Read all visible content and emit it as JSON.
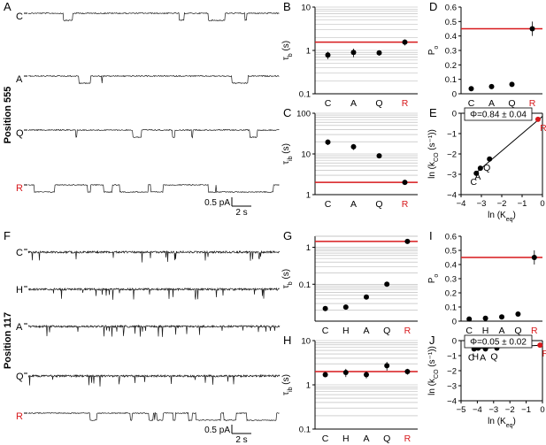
{
  "figure": {
    "position_labels": [
      "Position 555",
      "Position 117"
    ],
    "colors": {
      "black": "#000000",
      "red": "#d7191c",
      "grid": "#b3b3b3",
      "trace": "#1a1a1a"
    }
  },
  "traces": {
    "A": {
      "panel": "A",
      "rows": [
        {
          "label": "C",
          "red": false,
          "baseline": "closed",
          "style": "sparse"
        },
        {
          "label": "A",
          "red": false,
          "baseline": "closed",
          "style": "sparse"
        },
        {
          "label": "Q",
          "red": false,
          "baseline": "closed",
          "style": "sparse"
        },
        {
          "label": "R",
          "red": true,
          "baseline": "closed",
          "style": "gating"
        }
      ],
      "scalebar": {
        "current": "0.5 pA",
        "time": "2 s"
      }
    },
    "F": {
      "panel": "F",
      "rows": [
        {
          "label": "C",
          "red": false,
          "baseline": "open",
          "style": "flicker"
        },
        {
          "label": "H",
          "red": false,
          "baseline": "open",
          "style": "flicker"
        },
        {
          "label": "A",
          "red": false,
          "baseline": "open",
          "style": "flicker"
        },
        {
          "label": "Q",
          "red": false,
          "baseline": "open",
          "style": "flicker"
        },
        {
          "label": "R",
          "red": true,
          "baseline": "closed",
          "style": "gating"
        }
      ],
      "scalebar": {
        "current": "0.5 pA",
        "time": "2 s"
      }
    }
  },
  "chart_data": [
    {
      "panel": "B",
      "type": "scatter",
      "xscale": "category",
      "yscale": "log",
      "ylim": [
        0.1,
        10
      ],
      "yticks": [
        0.1,
        1,
        10
      ],
      "ytick_labels": [
        "0.1",
        "1",
        "10"
      ],
      "ylabel": "τb (s)",
      "grid": true,
      "categories": [
        "C",
        "A",
        "Q",
        "R"
      ],
      "red_categories": [
        "R"
      ],
      "values": [
        0.78,
        0.9,
        0.88,
        1.55
      ],
      "errors": [
        0.15,
        0.2,
        0.12,
        0.25
      ],
      "hline": 1.55
    },
    {
      "panel": "C",
      "type": "scatter",
      "xscale": "category",
      "yscale": "log",
      "ylim": [
        1,
        100
      ],
      "yticks": [
        1,
        10,
        100
      ],
      "ytick_labels": [
        "1",
        "10",
        "100"
      ],
      "ylabel": "τib (s)",
      "grid": true,
      "categories": [
        "C",
        "A",
        "Q",
        "R"
      ],
      "red_categories": [
        "R"
      ],
      "values": [
        19.5,
        15,
        9,
        2
      ],
      "errors": [
        3,
        2.5,
        1,
        0.2
      ],
      "hline": 2
    },
    {
      "panel": "D",
      "type": "scatter",
      "xscale": "category",
      "yscale": "linear",
      "ylim": [
        0,
        0.6
      ],
      "yticks": [
        0,
        0.1,
        0.2,
        0.3,
        0.4,
        0.5,
        0.6
      ],
      "ytick_labels": [
        "0",
        "0.1",
        "0.2",
        "0.3",
        "0.4",
        "0.5",
        "0.6"
      ],
      "ylabel": "Po",
      "grid": false,
      "categories": [
        "C",
        "A",
        "Q",
        "R"
      ],
      "red_categories": [
        "R"
      ],
      "values": [
        0.035,
        0.05,
        0.065,
        0.45
      ],
      "errors": [
        0.005,
        0.006,
        0.008,
        0.05
      ],
      "hline": 0.45
    },
    {
      "panel": "E",
      "type": "scatter",
      "xscale": "linear",
      "yscale": "linear",
      "xlim": [
        -4,
        0
      ],
      "ylim": [
        -4,
        0
      ],
      "xticks": [
        -4,
        -3,
        -2,
        -1,
        0
      ],
      "xtick_labels": [
        "−4",
        "−3",
        "−2",
        "−1",
        "0"
      ],
      "yticks": [
        -4,
        -3,
        -2,
        -1,
        0
      ],
      "ytick_labels": [
        "−4",
        "−3",
        "−2",
        "−1",
        "0"
      ],
      "xlabel": "ln (Keq)",
      "ylabel": "ln (kCO (s⁻¹))",
      "grid": false,
      "points": [
        {
          "label": "C",
          "x": -3.25,
          "y": -2.95,
          "red": false
        },
        {
          "label": "A",
          "x": -3.05,
          "y": -2.7,
          "red": false
        },
        {
          "label": "Q",
          "x": -2.6,
          "y": -2.25,
          "red": false
        },
        {
          "label": "R",
          "x": -0.22,
          "y": -0.3,
          "red": true
        }
      ],
      "fit": {
        "x": [
          -3.35,
          0
        ],
        "y": [
          -3.0,
          -0.15
        ]
      },
      "annotation": "Φ=0.84 ± 0.04"
    },
    {
      "panel": "G",
      "type": "scatter",
      "xscale": "category",
      "yscale": "log",
      "ylim": [
        0.01,
        2
      ],
      "yticks": [
        0.1,
        1
      ],
      "ytick_labels": [
        "0.1",
        "1"
      ],
      "ylabel": "τb (s)",
      "grid": true,
      "categories": [
        "C",
        "H",
        "A",
        "Q",
        "R"
      ],
      "red_categories": [
        "R"
      ],
      "values": [
        0.022,
        0.024,
        0.045,
        0.1,
        1.45
      ],
      "errors": [
        0.003,
        0.002,
        0.006,
        0.005,
        0.15
      ],
      "hline": 1.45
    },
    {
      "panel": "H",
      "type": "scatter",
      "xscale": "category",
      "yscale": "log",
      "ylim": [
        0.1,
        10
      ],
      "yticks": [
        0.1,
        1,
        10
      ],
      "ytick_labels": [
        "0.1",
        "1",
        "10"
      ],
      "ylabel": "τib (s)",
      "grid": true,
      "categories": [
        "C",
        "H",
        "A",
        "Q",
        "R"
      ],
      "red_categories": [
        "R"
      ],
      "values": [
        1.7,
        1.9,
        1.7,
        2.7,
        2.0
      ],
      "errors": [
        0.2,
        0.4,
        0.3,
        0.6,
        0.3
      ],
      "hline": 2.0
    },
    {
      "panel": "I",
      "type": "scatter",
      "xscale": "category",
      "yscale": "linear",
      "ylim": [
        0,
        0.6
      ],
      "yticks": [
        0,
        0.1,
        0.2,
        0.3,
        0.4,
        0.5,
        0.6
      ],
      "ytick_labels": [
        "0",
        "0.1",
        "0.2",
        "0.3",
        "0.4",
        "0.5",
        "0.6"
      ],
      "ylabel": "Po",
      "grid": false,
      "categories": [
        "C",
        "H",
        "A",
        "Q",
        "R"
      ],
      "red_categories": [
        "R"
      ],
      "values": [
        0.015,
        0.02,
        0.03,
        0.05,
        0.45
      ],
      "errors": [
        0.003,
        0.003,
        0.004,
        0.006,
        0.05
      ],
      "hline": 0.45
    },
    {
      "panel": "J",
      "type": "scatter",
      "xscale": "linear",
      "yscale": "linear",
      "xlim": [
        -5,
        0
      ],
      "ylim": [
        -4,
        0
      ],
      "xticks": [
        -5,
        -4,
        -3,
        -2,
        -1,
        0
      ],
      "xtick_labels": [
        "−5",
        "−4",
        "−3",
        "−2",
        "−1",
        "0"
      ],
      "yticks": [
        -4,
        -3,
        -2,
        -1,
        0
      ],
      "ytick_labels": [
        "−4",
        "−3",
        "−2",
        "−1",
        "0"
      ],
      "xlabel": "ln (Keq)",
      "ylabel": "ln (kCO (s⁻¹))",
      "grid": false,
      "points": [
        {
          "label": "C",
          "x": -4.2,
          "y": -0.55,
          "red": false
        },
        {
          "label": "H",
          "x": -3.95,
          "y": -0.5,
          "red": false
        },
        {
          "label": "A",
          "x": -3.5,
          "y": -0.55,
          "red": false
        },
        {
          "label": "Q",
          "x": -2.8,
          "y": -0.5,
          "red": false
        },
        {
          "label": "R",
          "x": -0.15,
          "y": -0.3,
          "red": true
        }
      ],
      "fit": {
        "x": [
          -4.3,
          0
        ],
        "y": [
          -0.55,
          -0.3
        ]
      },
      "annotation": "Φ=0.05 ± 0.02"
    }
  ]
}
